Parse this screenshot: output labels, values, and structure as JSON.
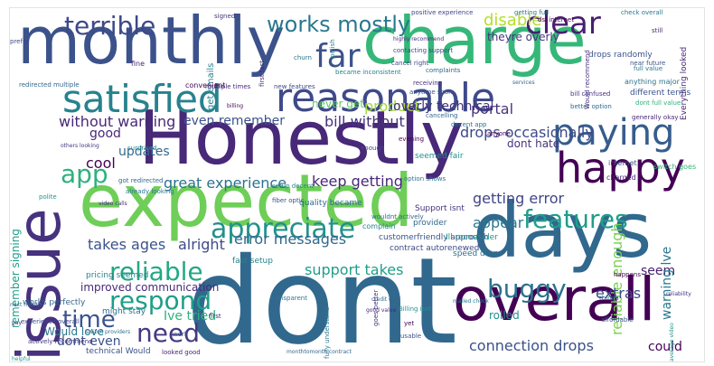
{
  "words": [
    {
      "text": "dont",
      "color": "#31688e"
    },
    {
      "text": "monthly",
      "color": "#3b528b"
    },
    {
      "text": "charge",
      "color": "#35b779"
    },
    {
      "text": "Honestly",
      "color": "#482878"
    },
    {
      "text": "expected",
      "color": "#6ece58"
    },
    {
      "text": "days",
      "color": "#31688e"
    },
    {
      "text": "issue",
      "color": "#46327e"
    },
    {
      "text": "overall",
      "color": "#440154"
    },
    {
      "text": "satisfied",
      "color": "#26828e"
    },
    {
      "text": "reasonable",
      "color": "#3e4a89"
    },
    {
      "text": "happy",
      "color": "#440154"
    },
    {
      "text": "paying",
      "color": "#365d8d"
    },
    {
      "text": "far",
      "color": "#3b528b"
    },
    {
      "text": "works mostly",
      "color": "#2a788e"
    },
    {
      "text": "terrible",
      "color": "#3e4989"
    },
    {
      "text": "clear",
      "color": "#481f70"
    },
    {
      "text": "appreciate",
      "color": "#21918c"
    },
    {
      "text": "reliable",
      "color": "#22a884"
    },
    {
      "text": "respond",
      "color": "#1f9e89"
    },
    {
      "text": "need",
      "color": "#443983"
    },
    {
      "text": "time",
      "color": "#3b528b"
    },
    {
      "text": "features",
      "color": "#1f9e89"
    },
    {
      "text": "buggy",
      "color": "#2c728e"
    },
    {
      "text": "app",
      "color": "#2db27d"
    },
    {
      "text": "disable",
      "color": "#b5de2b"
    },
    {
      "text": "product",
      "color": "#a0da39"
    },
    {
      "text": "portal",
      "color": "#46327e"
    },
    {
      "text": "drops occasionally",
      "color": "#3e4989"
    },
    {
      "text": "reliable enough",
      "color": "#7ad151"
    },
    {
      "text": "connection drops",
      "color": "#3b528b"
    },
    {
      "text": "great experience",
      "color": "#2c728e"
    },
    {
      "text": "keep getting",
      "color": "#482878"
    },
    {
      "text": "getting error",
      "color": "#404688"
    },
    {
      "text": "error messages",
      "color": "#31688e"
    },
    {
      "text": "support takes",
      "color": "#1f9e89"
    },
    {
      "text": "appear",
      "color": "#2a788e"
    },
    {
      "text": "takes ages",
      "color": "#3b528b"
    },
    {
      "text": "alright",
      "color": "#3e4a89"
    },
    {
      "text": "without warning",
      "color": "#482878"
    },
    {
      "text": "bill without",
      "color": "#46327e"
    },
    {
      "text": "even remember",
      "color": "#3b528b"
    },
    {
      "text": "never get",
      "color": "#5ec962"
    },
    {
      "text": "overly technical",
      "color": "#46327e"
    },
    {
      "text": "updates",
      "color": "#31688e"
    },
    {
      "text": "cool",
      "color": "#440154"
    },
    {
      "text": "good",
      "color": "#482878"
    },
    {
      "text": "Ive tried",
      "color": "#2fb47c"
    },
    {
      "text": "dont even",
      "color": "#3b528b"
    },
    {
      "text": "Would love",
      "color": "#2a788e"
    },
    {
      "text": "improved communication",
      "color": "#482878"
    },
    {
      "text": "extras",
      "color": "#3e4989"
    },
    {
      "text": "seem",
      "color": "#481f70"
    },
    {
      "text": "could",
      "color": "#440154"
    },
    {
      "text": "warning lve",
      "color": "#2a788e"
    },
    {
      "text": "dont hate",
      "color": "#46327e"
    },
    {
      "text": "rolled",
      "color": "#21918c"
    },
    {
      "text": "fast setup",
      "color": "#26828e"
    },
    {
      "text": "pricing seemed",
      "color": "#26828e"
    },
    {
      "text": "remember signing",
      "color": "#1f9e89"
    },
    {
      "text": "works perfectly",
      "color": "#31688e"
    },
    {
      "text": "experience overall",
      "color": "#3e4989"
    },
    {
      "text": "technical Would",
      "color": "#3b528b"
    },
    {
      "text": "might stay",
      "color": "#2c728e"
    },
    {
      "text": "quality became",
      "color": "#31688e"
    },
    {
      "text": "Support isnt",
      "color": "#46327e"
    },
    {
      "text": "provider",
      "color": "#31688e"
    },
    {
      "text": "complain",
      "color": "#26828e"
    },
    {
      "text": "transparent",
      "color": "#2a788e"
    },
    {
      "text": "customerfriendly approach",
      "color": "#3b528b"
    },
    {
      "text": "contract autorenewed",
      "color": "#3e4989"
    },
    {
      "text": "speed drops",
      "color": "#2c728e"
    },
    {
      "text": "Ill reconsider",
      "color": "#21918c"
    },
    {
      "text": "positive experience",
      "color": "#404688"
    },
    {
      "text": "getting full",
      "color": "#2a788e"
    },
    {
      "text": "dsl internet",
      "color": "#440154"
    },
    {
      "text": "check overall",
      "color": "#2a788e"
    },
    {
      "text": "drops randomly",
      "color": "#3b528b"
    },
    {
      "text": "theyre overly",
      "color": "#46327e"
    },
    {
      "text": "contacting support",
      "color": "#3e4989"
    },
    {
      "text": "Everything looked",
      "color": "#482878"
    },
    {
      "text": "different terms",
      "color": "#3b528b"
    },
    {
      "text": "anything major",
      "color": "#2c728e"
    },
    {
      "text": "generally okay",
      "color": "#482878"
    },
    {
      "text": "dont full value",
      "color": "#2db27d"
    },
    {
      "text": "get emails",
      "color": "#26828e"
    },
    {
      "text": "first fast",
      "color": "#482878"
    },
    {
      "text": "signed",
      "color": "#46327e"
    },
    {
      "text": "became inconsistent",
      "color": "#26828e"
    },
    {
      "text": "redirected multiple",
      "color": "#31688e"
    },
    {
      "text": "new features",
      "color": "#3e4a89"
    },
    {
      "text": "convenient",
      "color": "#440154"
    },
    {
      "text": "fine",
      "color": "#482878"
    },
    {
      "text": "polish",
      "color": "#26828e"
    },
    {
      "text": "complaints",
      "color": "#31688e"
    },
    {
      "text": "receiving",
      "color": "#46327e"
    },
    {
      "text": "anytime soon",
      "color": "#3b528b"
    },
    {
      "text": "cancelling",
      "color": "#31688e"
    },
    {
      "text": "decent app",
      "color": "#2c728e"
    },
    {
      "text": "seemed fair",
      "color": "#21918c"
    },
    {
      "text": "anyone",
      "color": "#440154"
    },
    {
      "text": "internet",
      "color": "#3b528b"
    },
    {
      "text": "charged",
      "color": "#482878"
    },
    {
      "text": "better option",
      "color": "#31688e"
    },
    {
      "text": "bill confused",
      "color": "#46327e"
    },
    {
      "text": "still",
      "color": "#482878"
    },
    {
      "text": "prefer",
      "color": "#3e4989"
    },
    {
      "text": "churn",
      "color": "#2a788e"
    },
    {
      "text": "switch goes",
      "color": "#35b779"
    },
    {
      "text": "setup decent",
      "color": "#26828e"
    },
    {
      "text": "fiber optic",
      "color": "#3b528b"
    },
    {
      "text": "got redirected",
      "color": "#31688e"
    },
    {
      "text": "surprised",
      "color": "#21918c"
    },
    {
      "text": "already looking",
      "color": "#2a788e"
    },
    {
      "text": "polite",
      "color": "#21918c"
    },
    {
      "text": "video calls",
      "color": "#482878"
    },
    {
      "text": "wouldnt actively",
      "color": "#31688e"
    },
    {
      "text": "enough",
      "color": "#3e4a89"
    },
    {
      "text": "evening",
      "color": "#440154"
    },
    {
      "text": "option shows",
      "color": "#2c728e"
    },
    {
      "text": "actively recommend",
      "color": "#46327e"
    },
    {
      "text": "looked good",
      "color": "#482878"
    },
    {
      "text": "monthtomonth contract",
      "color": "#31688e"
    },
    {
      "text": "goes better",
      "color": "#46327e"
    },
    {
      "text": "usable",
      "color": "#3b528b"
    },
    {
      "text": "Billing isnt",
      "color": "#21918c"
    },
    {
      "text": "yet",
      "color": "#440154"
    },
    {
      "text": "first",
      "color": "#482878"
    },
    {
      "text": "fully understand",
      "color": "#2a788e"
    },
    {
      "text": "things",
      "color": "#31688e"
    },
    {
      "text": "affordable",
      "color": "#3b528b"
    },
    {
      "text": "reliability",
      "color": "#46327e"
    },
    {
      "text": "happens",
      "color": "#440154"
    },
    {
      "text": "mailed check",
      "color": "#2a788e"
    },
    {
      "text": "credit card",
      "color": "#31688e"
    },
    {
      "text": "good value",
      "color": "#482878"
    },
    {
      "text": "near future",
      "color": "#3b528b"
    },
    {
      "text": "Would recommend",
      "color": "#46327e"
    },
    {
      "text": "full value",
      "color": "#2a788e"
    },
    {
      "text": "services",
      "color": "#31688e"
    },
    {
      "text": "cancel right",
      "color": "#3e4989"
    },
    {
      "text": "highly recommend",
      "color": "#482878"
    },
    {
      "text": "switch providers",
      "color": "#2c728e"
    },
    {
      "text": "next month",
      "color": "#31688e"
    },
    {
      "text": "helpful",
      "color": "#1f9e89"
    },
    {
      "text": "pay",
      "color": "#46327e"
    },
    {
      "text": "work",
      "color": "#3b528b"
    },
    {
      "text": "average video",
      "color": "#21918c"
    },
    {
      "text": "billing",
      "color": "#440154"
    },
    {
      "text": "others looking",
      "color": "#46327e"
    },
    {
      "text": "multiple times",
      "color": "#482878"
    }
  ]
}
